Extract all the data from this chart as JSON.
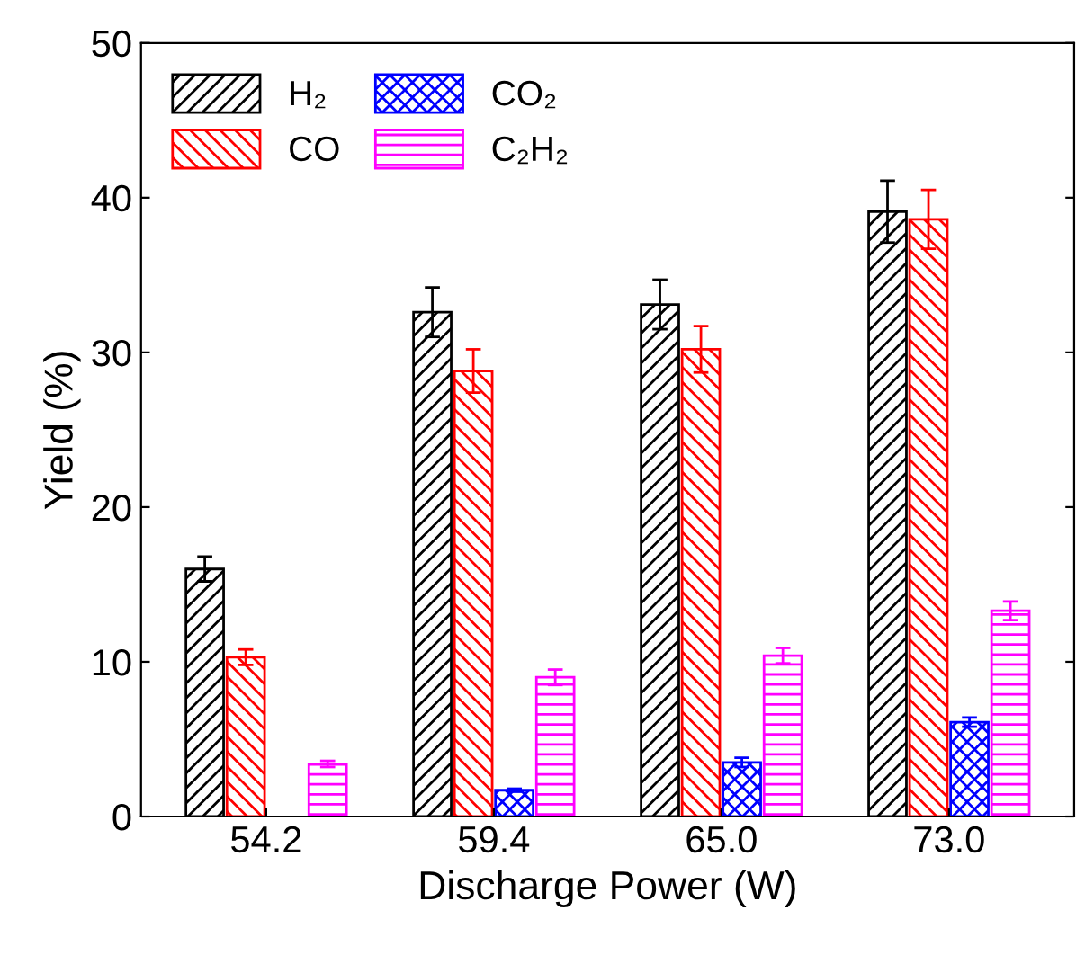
{
  "chart_data": {
    "type": "bar",
    "xlabel": "Discharge Power (W)",
    "ylabel": "Yield (%)",
    "categories": [
      "54.2",
      "59.4",
      "65.0",
      "73.0"
    ],
    "series": [
      {
        "name": "H₂",
        "color": "#000000",
        "values": [
          16.0,
          32.6,
          33.1,
          39.1
        ],
        "errors": [
          0.8,
          1.6,
          1.6,
          2.0
        ]
      },
      {
        "name": "CO",
        "color": "#ff0000",
        "values": [
          10.3,
          28.8,
          30.2,
          38.6
        ],
        "errors": [
          0.5,
          1.4,
          1.5,
          1.9
        ]
      },
      {
        "name": "CO₂",
        "color": "#0000ff",
        "values": [
          null,
          1.7,
          3.5,
          6.1
        ],
        "errors": [
          null,
          0.1,
          0.3,
          0.3
        ]
      },
      {
        "name": "C₂H₂",
        "color": "#ff00ff",
        "values": [
          3.4,
          9.0,
          10.4,
          13.3
        ],
        "errors": [
          0.2,
          0.5,
          0.5,
          0.6
        ]
      }
    ],
    "ylim": [
      0,
      50
    ],
    "yticks": [
      0,
      10,
      20,
      30,
      40,
      50
    ],
    "grid": false,
    "legend": "top left"
  }
}
